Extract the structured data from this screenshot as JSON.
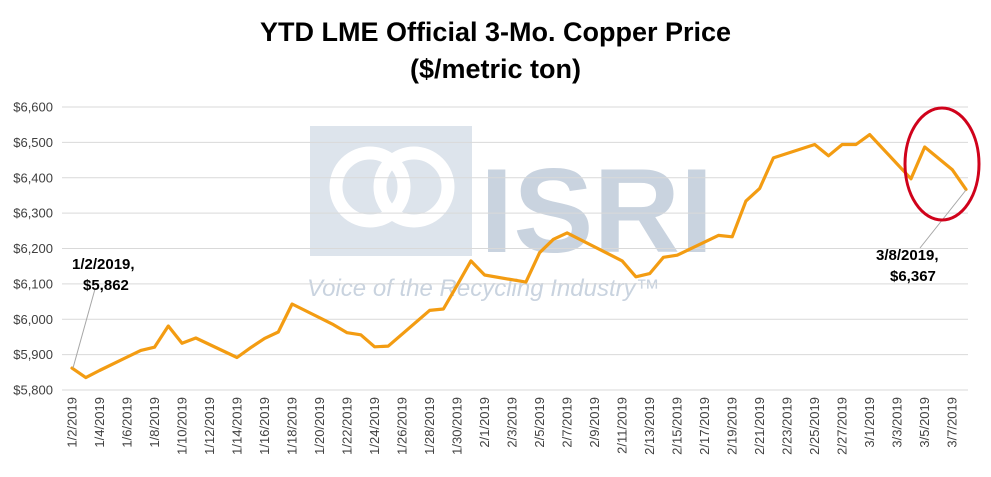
{
  "title_line1": "YTD LME Official 3-Mo. Copper Price",
  "title_line2": "($/metric ton)",
  "watermark": {
    "logo_text": "ISRI",
    "tagline": "Voice of the Recycling Industry™"
  },
  "colors": {
    "line": "#f39c12",
    "circle": "#d0021b",
    "grid": "#d9d9d9",
    "watermark": "#c9d3df"
  },
  "annotations": {
    "start": {
      "line1": "1/2/2019,",
      "line2": "$5,862"
    },
    "end": {
      "line1": "3/8/2019,",
      "line2": "$6,367"
    }
  },
  "chart_data": {
    "type": "line",
    "title": "YTD LME Official 3-Mo. Copper Price ($/metric ton)",
    "xlabel": "",
    "ylabel": "",
    "ylim": [
      5800,
      6600
    ],
    "yticks": [
      "$5,800",
      "$5,900",
      "$6,000",
      "$6,100",
      "$6,200",
      "$6,300",
      "$6,400",
      "$6,500",
      "$6,600"
    ],
    "grid": true,
    "x_range": [
      "1/2/2019",
      "3/8/2019"
    ],
    "xticks": [
      "1/2/2019",
      "1/4/2019",
      "1/6/2019",
      "1/8/2019",
      "1/10/2019",
      "1/12/2019",
      "1/14/2019",
      "1/16/2019",
      "1/18/2019",
      "1/20/2019",
      "1/22/2019",
      "1/24/2019",
      "1/26/2019",
      "1/28/2019",
      "1/30/2019",
      "2/1/2019",
      "2/3/2019",
      "2/5/2019",
      "2/7/2019",
      "2/9/2019",
      "2/11/2019",
      "2/13/2019",
      "2/15/2019",
      "2/17/2019",
      "2/19/2019",
      "2/21/2019",
      "2/23/2019",
      "2/25/2019",
      "2/27/2019",
      "3/1/2019",
      "3/3/2019",
      "3/5/2019",
      "3/7/2019"
    ],
    "series": [
      {
        "points": [
          [
            "1/2/2019",
            5862
          ],
          [
            "1/3/2019",
            5835
          ],
          [
            "1/4/2019",
            5855
          ],
          [
            "1/7/2019",
            5912
          ],
          [
            "1/8/2019",
            5921
          ],
          [
            "1/9/2019",
            5981
          ],
          [
            "1/10/2019",
            5932
          ],
          [
            "1/11/2019",
            5947
          ],
          [
            "1/14/2019",
            5892
          ],
          [
            "1/15/2019",
            5920
          ],
          [
            "1/16/2019",
            5946
          ],
          [
            "1/17/2019",
            5964
          ],
          [
            "1/18/2019",
            6043
          ],
          [
            "1/21/2019",
            5985
          ],
          [
            "1/22/2019",
            5962
          ],
          [
            "1/23/2019",
            5956
          ],
          [
            "1/24/2019",
            5922
          ],
          [
            "1/25/2019",
            5924
          ],
          [
            "1/28/2019",
            6025
          ],
          [
            "1/29/2019",
            6029
          ],
          [
            "1/30/2019",
            6096
          ],
          [
            "1/31/2019",
            6165
          ],
          [
            "2/1/2019",
            6125
          ],
          [
            "2/4/2019",
            6105
          ],
          [
            "2/5/2019",
            6188
          ],
          [
            "2/6/2019",
            6226
          ],
          [
            "2/7/2019",
            6244
          ],
          [
            "2/11/2019",
            6165
          ],
          [
            "2/12/2019",
            6120
          ],
          [
            "2/13/2019",
            6129
          ],
          [
            "2/14/2019",
            6175
          ],
          [
            "2/15/2019",
            6181
          ],
          [
            "2/18/2019",
            6237
          ],
          [
            "2/19/2019",
            6233
          ],
          [
            "2/20/2019",
            6334
          ],
          [
            "2/21/2019",
            6370
          ],
          [
            "2/22/2019",
            6456
          ],
          [
            "2/25/2019",
            6494
          ],
          [
            "2/26/2019",
            6462
          ],
          [
            "2/27/2019",
            6494
          ],
          [
            "2/28/2019",
            6494
          ],
          [
            "3/1/2019",
            6522
          ],
          [
            "3/4/2019",
            6397
          ],
          [
            "3/5/2019",
            6487
          ],
          [
            "3/7/2019",
            6423
          ],
          [
            "3/8/2019",
            6367
          ]
        ]
      }
    ]
  }
}
